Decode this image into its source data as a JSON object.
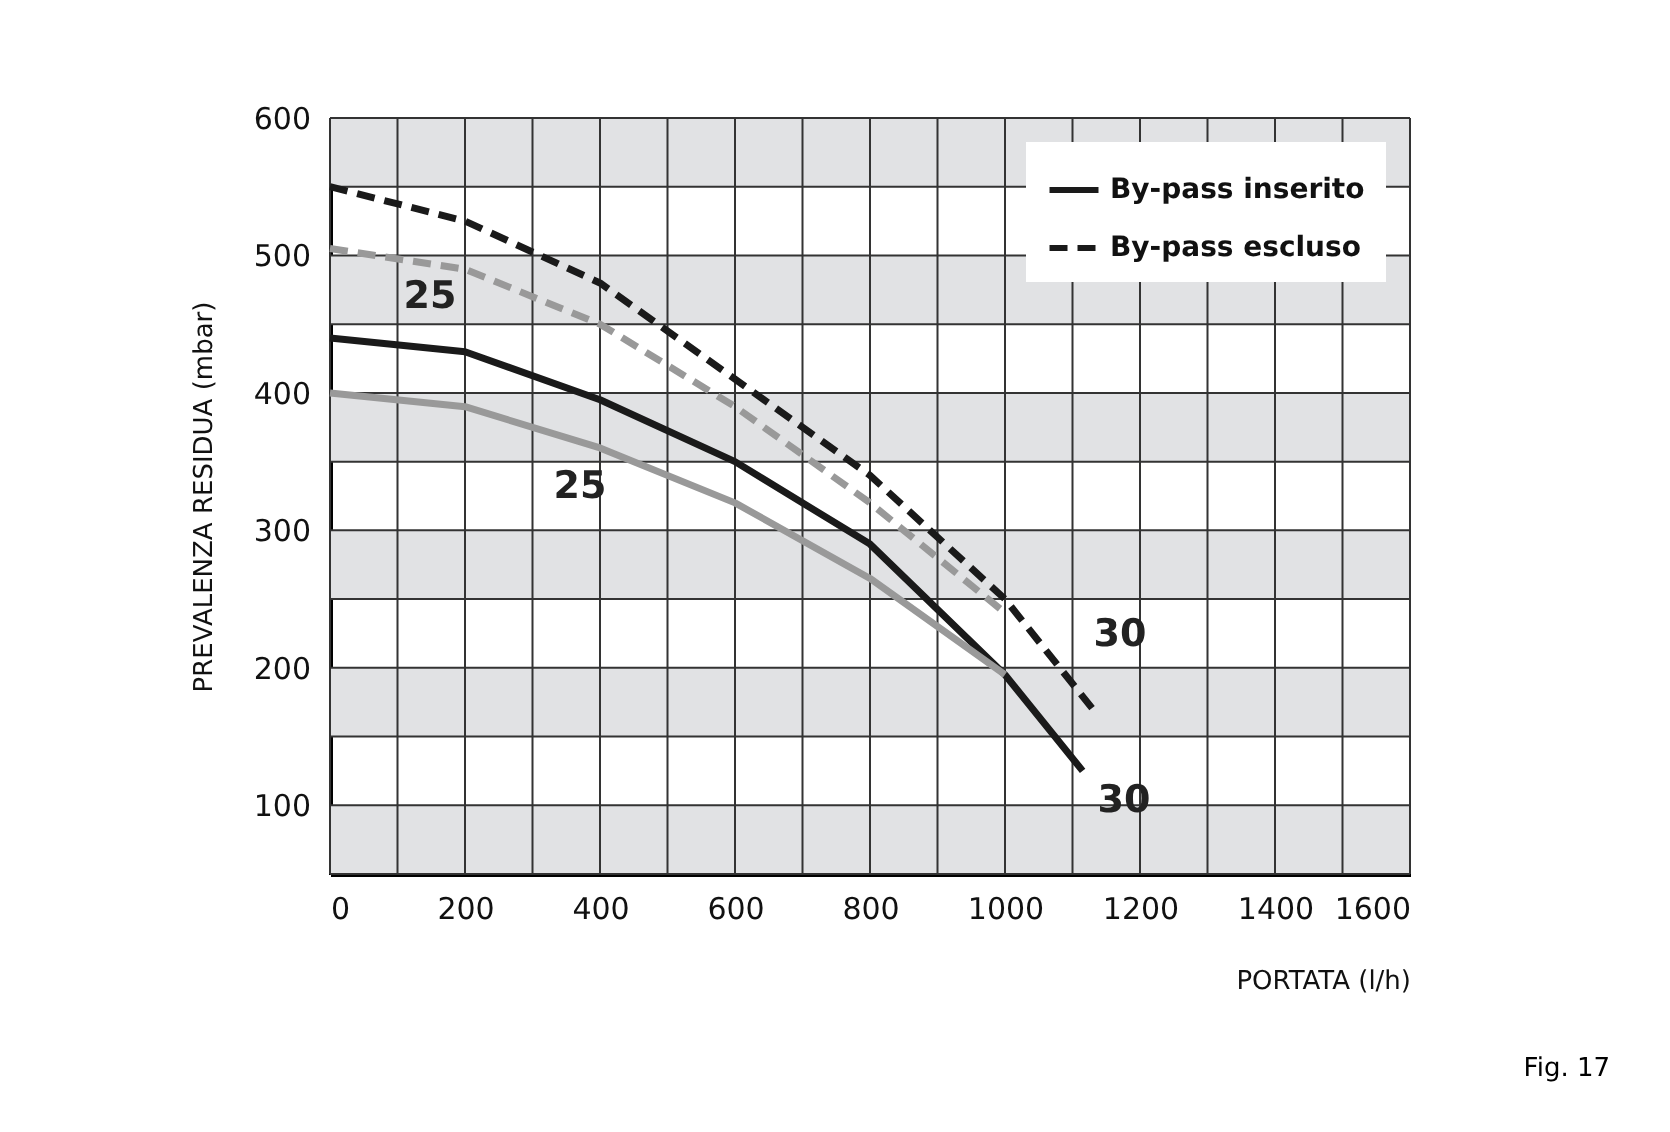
{
  "chart_data": {
    "type": "line",
    "xlabel": "PORTATA (l/h)",
    "ylabel": "PREVALENZA RESIDUA (mbar)",
    "xlim": [
      0,
      1600
    ],
    "ylim": [
      50,
      600
    ],
    "xticks": [
      0,
      {
        "value": 100,
        "label": null
      },
      200,
      {
        "value": 300,
        "label": null
      },
      400,
      {
        "value": 500,
        "label": null
      },
      600,
      {
        "value": 700,
        "label": null
      },
      800,
      {
        "value": 900,
        "label": null
      },
      1000,
      {
        "value": 1100,
        "label": null
      },
      1200,
      {
        "value": 1300,
        "label": null
      },
      1400,
      {
        "value": 1500,
        "label": null
      },
      1600
    ],
    "yticks": [
      {
        "value": 50,
        "label": null
      },
      100,
      {
        "value": 150,
        "label": null
      },
      200,
      {
        "value": 250,
        "label": null
      },
      300,
      {
        "value": 350,
        "label": null
      },
      400,
      {
        "value": 450,
        "label": null
      },
      500,
      {
        "value": 550,
        "label": null
      },
      600
    ],
    "grid": true,
    "legend": "top right",
    "marker": "none",
    "bands": [
      {
        "axis": "y",
        "from": 50,
        "to": 100,
        "color": "#e1e2e4"
      },
      {
        "axis": "y",
        "from": 150,
        "to": 200,
        "color": "#e1e2e4"
      },
      {
        "axis": "y",
        "from": 250,
        "to": 300,
        "color": "#e1e2e4"
      },
      {
        "axis": "y",
        "from": 350,
        "to": 400,
        "color": "#e1e2e4"
      },
      {
        "axis": "y",
        "from": 450,
        "to": 500,
        "color": "#e1e2e4"
      },
      {
        "axis": "y",
        "from": 550,
        "to": 600,
        "color": "#e1e2e4"
      }
    ],
    "series": [
      {
        "name": "By-pass inserito",
        "color": "#1a1a1a",
        "line_style": "solid",
        "x": [
          0,
          200,
          400,
          600,
          800,
          1000,
          1115
        ],
        "values": [
          440,
          430,
          395,
          350,
          290,
          195,
          125
        ]
      },
      {
        "name": "By-pass escluso",
        "color": "#1a1a1a",
        "line_style": "dashed",
        "x": [
          0,
          200,
          400,
          600,
          800,
          1000,
          1130
        ],
        "values": [
          550,
          525,
          480,
          410,
          340,
          250,
          170
        ]
      },
      {
        "color": "#999999",
        "line_style": "solid",
        "x": [
          0,
          200,
          400,
          600,
          800,
          1000
        ],
        "values": [
          400,
          390,
          360,
          320,
          265,
          195
        ]
      },
      {
        "color": "#999999",
        "line_style": "dashed",
        "x": [
          0,
          200,
          400,
          600,
          800,
          1000
        ],
        "values": [
          505,
          490,
          450,
          390,
          320,
          240
        ]
      }
    ],
    "annotations": [
      "25",
      "25",
      "30",
      "30",
      "Fig. 17"
    ]
  }
}
